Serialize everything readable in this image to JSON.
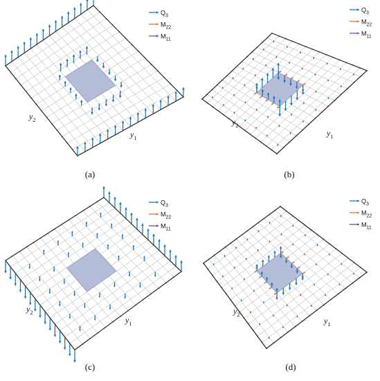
{
  "panels": [
    {
      "id": "a",
      "caption": "(a)",
      "y1_label": "y",
      "y1_sub": "1",
      "y2_label": "y",
      "y2_sub": "2",
      "legend": [
        {
          "symbol": "Q",
          "sub": "3",
          "color": "#1f77b4"
        },
        {
          "symbol": "M",
          "sub": "22",
          "color": "#e8703a"
        },
        {
          "symbol": "M",
          "sub": "11",
          "color": "#7e3fa3"
        }
      ]
    },
    {
      "id": "b",
      "caption": "(b)",
      "y1_label": "y",
      "y1_sub": "1",
      "y2_label": "y",
      "y2_sub": "2",
      "legend": [
        {
          "symbol": "Q",
          "sub": "3",
          "color": "#1f77b4"
        },
        {
          "symbol": "M",
          "sub": "22",
          "color": "#e8703a"
        },
        {
          "symbol": "M",
          "sub": "11",
          "color": "#7e3fa3"
        }
      ]
    },
    {
      "id": "c",
      "caption": "(c)",
      "y1_label": "y",
      "y1_sub": "1",
      "y2_label": "y",
      "y2_sub": "2",
      "legend": [
        {
          "symbol": "Q",
          "sub": "3",
          "color": "#1f77b4"
        },
        {
          "symbol": "M",
          "sub": "22",
          "color": "#e8703a"
        },
        {
          "symbol": "M",
          "sub": "11",
          "color": "#7e3fa3"
        }
      ]
    },
    {
      "id": "d",
      "caption": "(d)",
      "y1_label": "y",
      "y1_sub": "1",
      "y2_label": "y",
      "y2_sub": "2",
      "legend": [
        {
          "symbol": "Q",
          "sub": "3",
          "color": "#1f77b4"
        },
        {
          "symbol": "M",
          "sub": "22",
          "color": "#e8703a"
        },
        {
          "symbol": "M",
          "sub": "11",
          "color": "#7e3fa3"
        }
      ]
    }
  ],
  "colors": {
    "grid": "#bfbfbf",
    "frame": "#222222",
    "patch": "#b3bcd9",
    "arrow_q3": "#1f77b4",
    "arrow_m22": "#e8703a",
    "arrow_m11": "#7e3fa3"
  }
}
